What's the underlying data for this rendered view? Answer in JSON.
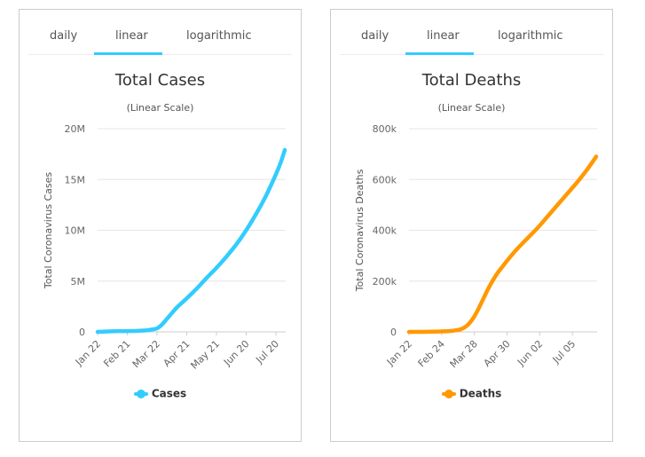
{
  "tabs": [
    "daily",
    "linear",
    "logarithmic"
  ],
  "active_tab": "linear",
  "colors": {
    "cases": "#33ccff",
    "deaths": "#ff9900"
  },
  "chart_data": [
    {
      "type": "line",
      "title": "Total Cases",
      "subtitle": "(Linear Scale)",
      "ylabel": "Total Coronavirus Cases",
      "xlabel": "",
      "ylim": [
        0,
        20000000
      ],
      "ytick_values": [
        0,
        5000000,
        10000000,
        15000000,
        20000000
      ],
      "ytick_labels": [
        "0",
        "5M",
        "10M",
        "15M",
        "20M"
      ],
      "x_start": "Jan 22",
      "x_count": 190,
      "xtick_indices": [
        0,
        30,
        60,
        90,
        120,
        150,
        180
      ],
      "xtick_labels": [
        "Jan 22",
        "Feb 21",
        "Mar 22",
        "Apr 21",
        "May 21",
        "Jun 20",
        "Jul 20"
      ],
      "grid": true,
      "legend": "bottom-center",
      "series": [
        {
          "name": "Cases",
          "x": [
            0,
            10,
            20,
            30,
            40,
            50,
            55,
            60,
            65,
            70,
            75,
            80,
            90,
            100,
            110,
            120,
            130,
            140,
            150,
            160,
            170,
            180,
            185,
            189
          ],
          "values": [
            555,
            40000,
            75000,
            80000,
            100000,
            150000,
            240000,
            340000,
            720000,
            1280000,
            1850000,
            2400000,
            3300000,
            4250000,
            5300000,
            6300000,
            7400000,
            8600000,
            10000000,
            11600000,
            13400000,
            15500000,
            16700000,
            17900000
          ]
        }
      ]
    },
    {
      "type": "line",
      "title": "Total Deaths",
      "subtitle": "(Linear Scale)",
      "ylabel": "Total Coronavirus Deaths",
      "xlabel": "",
      "ylim": [
        0,
        800000
      ],
      "ytick_values": [
        0,
        200000,
        400000,
        600000,
        800000
      ],
      "ytick_labels": [
        "0",
        "200k",
        "400k",
        "600k",
        "800k"
      ],
      "x_start": "Jan 22",
      "x_count": 190,
      "xtick_indices": [
        0,
        33,
        66,
        99,
        132,
        165
      ],
      "xtick_labels": [
        "Jan 22",
        "Feb 24",
        "Mar 28",
        "Apr 30",
        "Jun 02",
        "Jul 05"
      ],
      "grid": true,
      "legend": "bottom-center",
      "series": [
        {
          "name": "Deaths",
          "x": [
            0,
            20,
            40,
            50,
            55,
            60,
            65,
            70,
            75,
            80,
            85,
            90,
            95,
            100,
            110,
            120,
            130,
            140,
            150,
            160,
            170,
            180,
            189
          ],
          "values": [
            17,
            600,
            3000,
            8000,
            15000,
            30000,
            55000,
            90000,
            130000,
            170000,
            205000,
            235000,
            260000,
            285000,
            330000,
            370000,
            410000,
            455000,
            500000,
            545000,
            590000,
            640000,
            690000
          ]
        }
      ]
    }
  ]
}
